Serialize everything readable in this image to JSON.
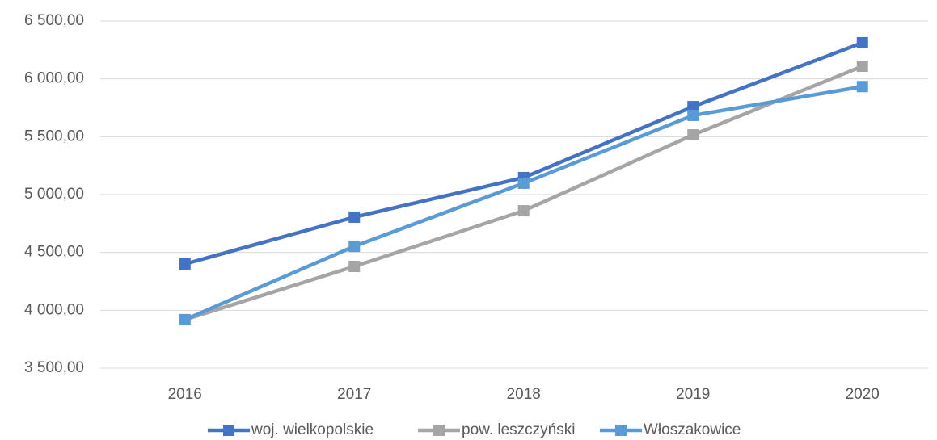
{
  "chart_data": {
    "type": "line",
    "categories": [
      "2016",
      "2017",
      "2018",
      "2019",
      "2020"
    ],
    "series": [
      {
        "name": "woj. wielkopolskie",
        "color": "#4472c4",
        "values": [
          4400,
          4805,
          5147,
          5760,
          6312
        ]
      },
      {
        "name": "pow. leszczyński",
        "color": "#a5a5a5",
        "values": [
          3919,
          4379,
          4860,
          5516,
          6109
        ]
      },
      {
        "name": "Włoszakowice",
        "color": "#5b9bd5",
        "values": [
          3919,
          4553,
          5098,
          5684,
          5933
        ]
      }
    ],
    "ylim": [
      3500,
      6500
    ],
    "yticks": [
      {
        "value": 3500,
        "label": "3 500,00"
      },
      {
        "value": 4000,
        "label": "4 000,00"
      },
      {
        "value": 4500,
        "label": "4 500,00"
      },
      {
        "value": 5000,
        "label": "5 000,00"
      },
      {
        "value": 5500,
        "label": "5 500,00"
      },
      {
        "value": 6000,
        "label": "6 000,00"
      },
      {
        "value": 6500,
        "label": "6 500,00"
      }
    ],
    "grid": true,
    "legend": "bottom"
  }
}
